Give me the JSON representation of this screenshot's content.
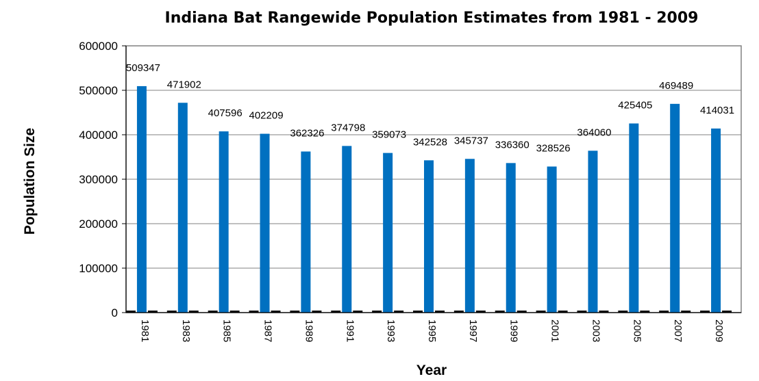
{
  "chart_data": {
    "type": "bar",
    "title": "Indiana Bat Rangewide Population Estimates from 1981 - 2009",
    "xlabel": "Year",
    "ylabel": "Population Size",
    "ylim": [
      0,
      600000
    ],
    "yticks": [
      "0",
      "100000",
      "200000",
      "300000",
      "400000",
      "500000",
      "600000"
    ],
    "grid": true,
    "legend": "none",
    "categories": [
      "1981",
      "1983",
      "1985",
      "1987",
      "1989",
      "1991",
      "1993",
      "1995",
      "1997",
      "1999",
      "2001",
      "2003",
      "2005",
      "2007",
      "2009"
    ],
    "series": [
      {
        "values": [
          509347,
          471902,
          407596,
          402209,
          362326,
          374798,
          359073,
          342528,
          345737,
          336360,
          328526,
          364060,
          425405,
          469489,
          414031
        ],
        "labels": [
          "509347",
          "471902",
          "407596",
          "402209",
          "362326",
          "374798",
          "359073",
          "342528",
          "345737",
          "336360",
          "328526",
          "364060",
          "425405",
          "469489",
          "414031"
        ],
        "color": "#0070C0"
      },
      {
        "values": [
          0,
          0,
          0,
          0,
          0,
          0,
          0,
          0,
          0,
          0,
          0,
          0,
          0,
          0,
          0
        ],
        "color": "#111111"
      }
    ]
  }
}
